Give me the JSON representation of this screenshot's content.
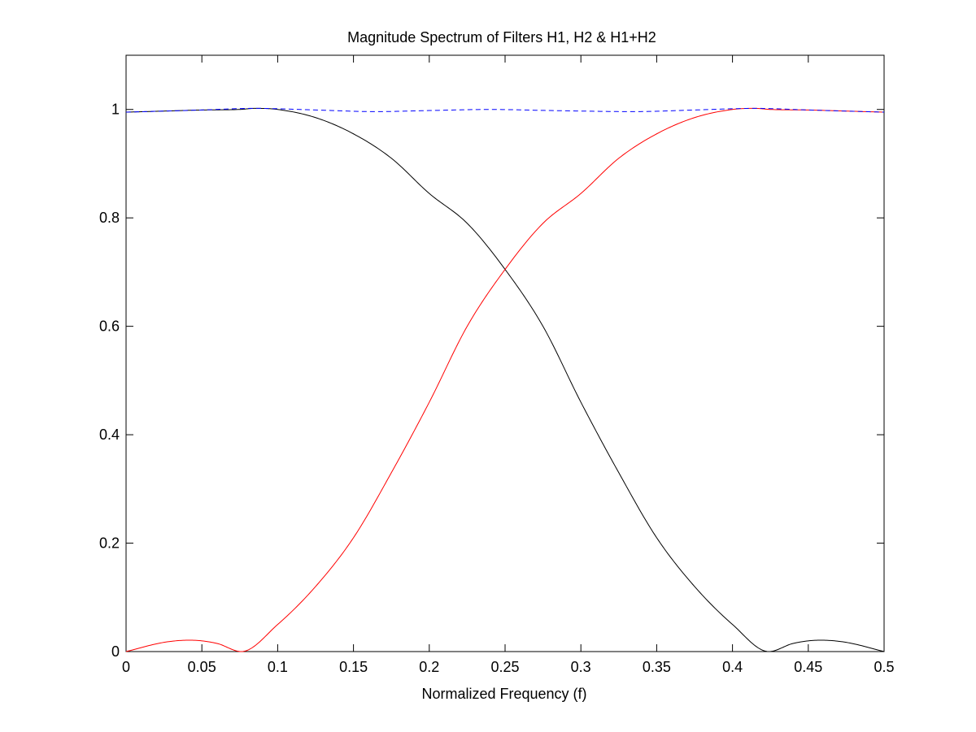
{
  "chart_data": {
    "type": "line",
    "title": "Magnitude Spectrum of Filters H1, H2 & H1+H2",
    "xlabel": "Normalized Frequency (f)",
    "ylabel": "",
    "xlim": [
      0,
      0.5
    ],
    "ylim": [
      0,
      1.1
    ],
    "xticks": [
      0,
      0.05,
      0.1,
      0.15,
      0.2,
      0.25,
      0.3,
      0.35,
      0.4,
      0.45,
      0.5
    ],
    "xtick_labels": [
      "0",
      "0.05",
      "0.1",
      "0.15",
      "0.2",
      "0.25",
      "0.3",
      "0.35",
      "0.4",
      "0.45",
      "0.5"
    ],
    "yticks": [
      0,
      0.2,
      0.4,
      0.6,
      0.8,
      1
    ],
    "ytick_labels": [
      "0",
      "0.2",
      "0.4",
      "0.6",
      "0.8",
      "1"
    ],
    "grid": false,
    "legend": "none",
    "series": [
      {
        "color": "#000000",
        "style": "solid",
        "x": [
          0,
          0.025,
          0.05,
          0.075,
          0.085,
          0.1,
          0.125,
          0.15,
          0.175,
          0.2,
          0.225,
          0.25,
          0.275,
          0.3,
          0.325,
          0.35,
          0.375,
          0.4,
          0.424,
          0.44,
          0.458,
          0.475,
          0.5
        ],
        "y": [
          0.995,
          0.997,
          0.999,
          1.0,
          1.002,
          1.0,
          0.985,
          0.955,
          0.91,
          0.845,
          0.79,
          0.705,
          0.6,
          0.46,
          0.33,
          0.21,
          0.12,
          0.05,
          0.0,
          0.015,
          0.021,
          0.017,
          0.0
        ]
      },
      {
        "color": "#ff0000",
        "style": "solid",
        "x": [
          0,
          0.025,
          0.042,
          0.06,
          0.076,
          0.1,
          0.125,
          0.15,
          0.175,
          0.2,
          0.225,
          0.25,
          0.275,
          0.3,
          0.325,
          0.35,
          0.375,
          0.4,
          0.415,
          0.425,
          0.45,
          0.475,
          0.5
        ],
        "y": [
          0.0,
          0.017,
          0.021,
          0.015,
          0.0,
          0.05,
          0.12,
          0.21,
          0.33,
          0.46,
          0.6,
          0.705,
          0.79,
          0.845,
          0.91,
          0.955,
          0.985,
          1.0,
          1.002,
          1.0,
          0.999,
          0.997,
          0.995
        ]
      },
      {
        "color": "#0000ff",
        "style": "dashed",
        "x": [
          0,
          0.05,
          0.085,
          0.125,
          0.165,
          0.2,
          0.24,
          0.28,
          0.335,
          0.375,
          0.415,
          0.45,
          0.5
        ],
        "y": [
          0.995,
          0.999,
          1.002,
          0.999,
          0.996,
          0.998,
          1.0,
          0.998,
          0.996,
          0.999,
          1.002,
          0.999,
          0.995
        ]
      }
    ]
  }
}
